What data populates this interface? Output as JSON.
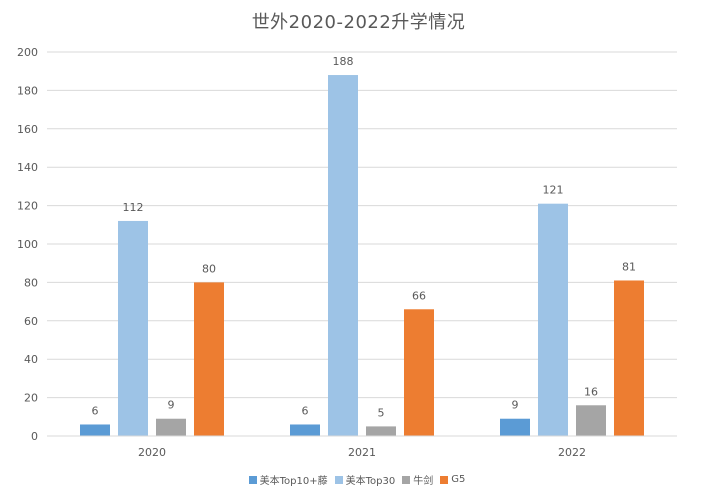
{
  "chart_data": {
    "type": "bar",
    "title": "世外2020-2022升学情况",
    "categories": [
      "2020",
      "2021",
      "2022"
    ],
    "series": [
      {
        "name": "美本Top10+藤",
        "values": [
          6,
          6,
          9
        ],
        "color": "#5B9BD5"
      },
      {
        "name": "美本Top30",
        "values": [
          112,
          188,
          121
        ],
        "color": "#9DC3E6"
      },
      {
        "name": "牛剑",
        "values": [
          9,
          5,
          16
        ],
        "color": "#A5A5A5"
      },
      {
        "name": "G5",
        "values": [
          80,
          66,
          81
        ],
        "color": "#ED7D31"
      }
    ],
    "ylim": [
      0,
      200
    ],
    "yticks": [
      "0",
      "20",
      "40",
      "60",
      "80",
      "100",
      "120",
      "140",
      "160",
      "180",
      "200"
    ],
    "xlabel": "",
    "ylabel": "",
    "grid": true,
    "legend_position": "bottom"
  }
}
